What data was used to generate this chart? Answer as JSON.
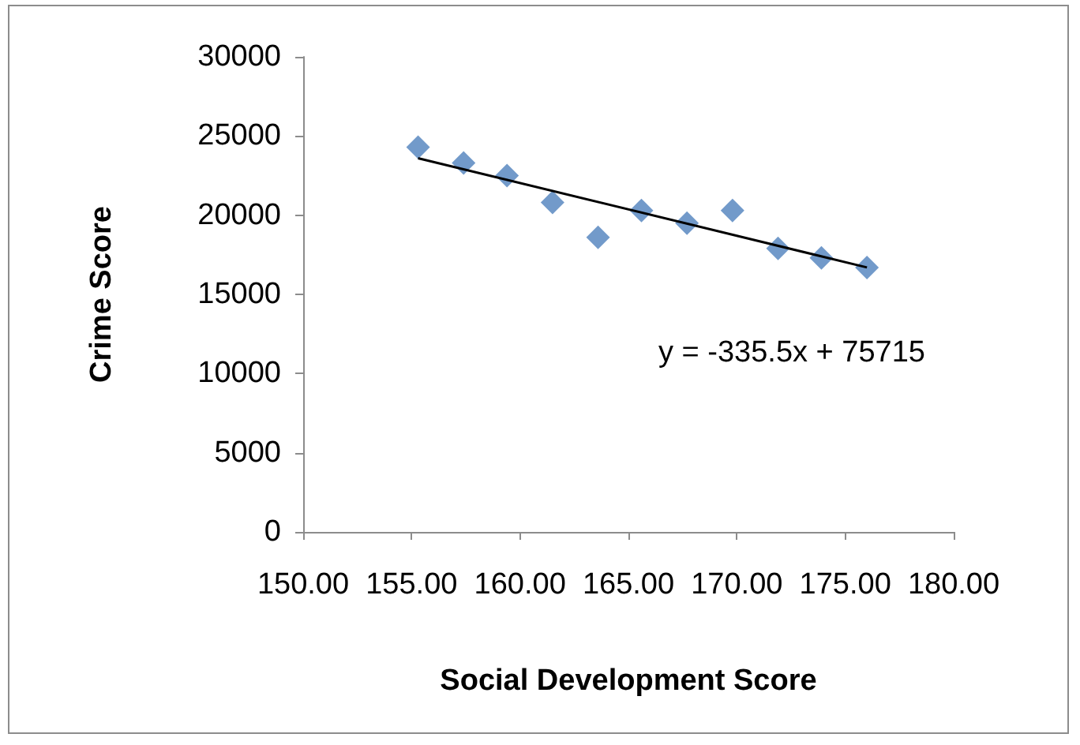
{
  "chart_data": {
    "type": "scatter",
    "xlabel": "Social Development Score",
    "ylabel": "Crime Score",
    "x": [
      155.3,
      157.4,
      159.4,
      161.5,
      163.6,
      165.6,
      167.7,
      169.8,
      171.9,
      173.9,
      176.0
    ],
    "series": [
      {
        "color": "#4f81bd",
        "values": [
          24300,
          23300,
          22500,
          20800,
          18600,
          20300,
          19500,
          20300,
          17900,
          17300,
          16700
        ]
      },
      {
        "type": "line",
        "color": "#000000",
        "marker": "none",
        "x": [
          155.3,
          176.0
        ],
        "values": [
          23600,
          16700
        ]
      }
    ],
    "marker": "diamond",
    "grid": false,
    "xlim": [
      150,
      180
    ],
    "xticks": [
      {
        "value": 150,
        "label": "150.00"
      },
      {
        "value": 155,
        "label": "155.00"
      },
      {
        "value": 160,
        "label": "160.00"
      },
      {
        "value": 165,
        "label": "165.00"
      },
      {
        "value": 170,
        "label": "170.00"
      },
      {
        "value": 175,
        "label": "175.00"
      },
      {
        "value": 180,
        "label": "180.00"
      }
    ],
    "ylim": [
      0,
      30000
    ],
    "yticks": [
      0,
      5000,
      10000,
      15000,
      20000,
      25000,
      30000
    ],
    "annotations": [
      "y = -335.5x + 75715"
    ]
  }
}
